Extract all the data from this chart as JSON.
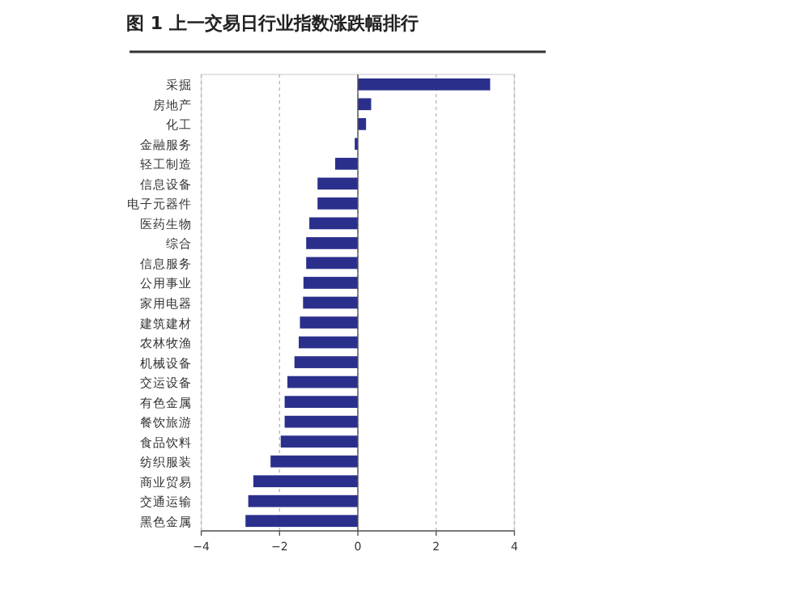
{
  "chart_data": {
    "type": "bar",
    "orientation": "horizontal",
    "title": "图 1 上一交易日行业指数涨跌幅排行",
    "categories": [
      "采掘",
      "房地产",
      "化工",
      "金融服务",
      "轻工制造",
      "信息设备",
      "电子元器件",
      "医药生物",
      "综合",
      "信息服务",
      "公用事业",
      "家用电器",
      "建筑建材",
      "农林牧渔",
      "机械设备",
      "交运设备",
      "有色金属",
      "餐饮旅游",
      "食品饮料",
      "纺织服装",
      "商业贸易",
      "交通运输",
      "黑色金属"
    ],
    "values": [
      3.38,
      0.34,
      0.21,
      -0.08,
      -0.58,
      -1.03,
      -1.03,
      -1.24,
      -1.32,
      -1.32,
      -1.39,
      -1.4,
      -1.48,
      -1.51,
      -1.62,
      -1.8,
      -1.87,
      -1.87,
      -1.97,
      -2.23,
      -2.67,
      -2.8,
      -2.87
    ],
    "color": "#2b2f8c",
    "xlim": [
      -4,
      4
    ],
    "xticks": [
      -4,
      -2,
      0,
      2,
      4
    ],
    "grid": "x"
  }
}
